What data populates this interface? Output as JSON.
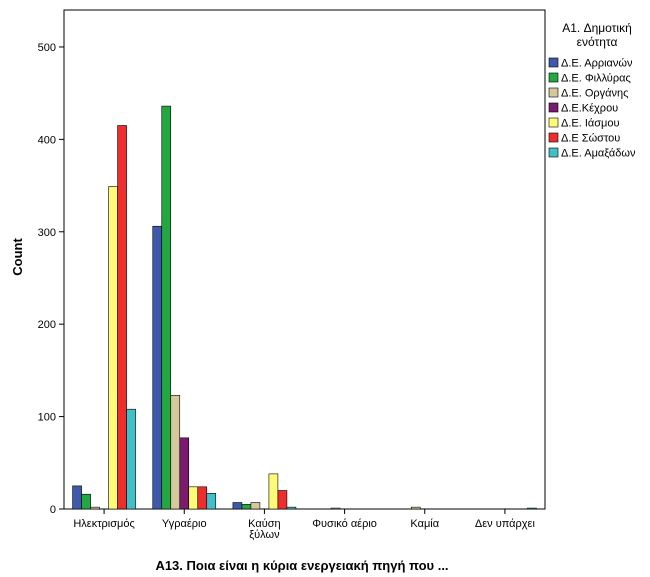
{
  "chart_data": {
    "type": "bar",
    "xlabel": "A13. Ποια είναι η κύρια ενεργειακή πηγή που ...",
    "ylabel": "Count",
    "ylim": [
      0,
      540
    ],
    "yticks": [
      0,
      100,
      200,
      300,
      400,
      500
    ],
    "grid": false,
    "legend": {
      "title_lines": [
        "A1. Δημοτική",
        "ενότητα"
      ],
      "placement": "right"
    },
    "categories": [
      [
        "Ηλεκτρισμός"
      ],
      [
        "Υγραέριο"
      ],
      [
        "Καύση",
        "ξύλων"
      ],
      [
        "Φυσικό αέριο"
      ],
      [
        "Καμία"
      ],
      [
        "Δεν υπάρχει"
      ]
    ],
    "series": [
      {
        "name": "Δ.Ε. Αρριανών",
        "color": "#3e58ac",
        "values": [
          25,
          306,
          7,
          0,
          0,
          0
        ]
      },
      {
        "name": "Δ.Ε. Φιλλύρας",
        "color": "#23a741",
        "values": [
          16,
          436,
          5,
          0,
          0,
          0
        ]
      },
      {
        "name": "Δ.Ε. Οργάνης",
        "color": "#d4c99b",
        "values": [
          2,
          123,
          7,
          1,
          2,
          0
        ]
      },
      {
        "name": "Δ.Ε.Κέχρου",
        "color": "#7b1a6e",
        "values": [
          0,
          77,
          0,
          0,
          0,
          0
        ]
      },
      {
        "name": "Δ.Ε. Ιάσμου",
        "color": "#fdfb78",
        "values": [
          349,
          24,
          38,
          0,
          0,
          0
        ]
      },
      {
        "name": "Δ.Ε Σώστου",
        "color": "#ee2e2e",
        "values": [
          415,
          24,
          20,
          0,
          0,
          0
        ]
      },
      {
        "name": "Δ.Ε. Αμαξάδων",
        "color": "#41c0c8",
        "values": [
          108,
          17,
          2,
          0,
          0,
          1
        ]
      }
    ]
  }
}
